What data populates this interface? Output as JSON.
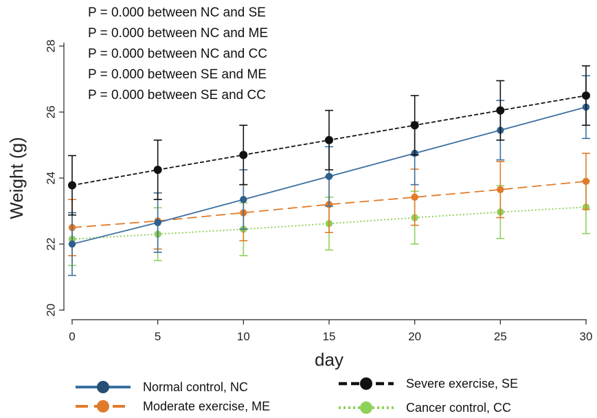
{
  "chart_data": {
    "type": "line",
    "xlabel": "day",
    "ylabel": "Weight (g)",
    "x": [
      0,
      5,
      10,
      15,
      20,
      25,
      30
    ],
    "xlim": [
      0,
      30
    ],
    "ylim": [
      20,
      28
    ],
    "x_ticks": [
      "0",
      "5",
      "10",
      "15",
      "20",
      "25",
      "30"
    ],
    "y_ticks": [
      "20",
      "22",
      "24",
      "26",
      "28"
    ],
    "grid": false,
    "legend_position": "bottom",
    "series": [
      {
        "name": "Normal control, NC",
        "values": [
          22.0,
          22.65,
          23.35,
          24.05,
          24.75,
          25.45,
          26.15
        ],
        "err": [
          0.95,
          0.9,
          0.9,
          0.9,
          0.95,
          0.9,
          0.95
        ],
        "color": "#3a6fa0",
        "dash": "solid"
      },
      {
        "name": "Moderate exercise, ME",
        "values": [
          22.5,
          22.7,
          22.95,
          23.2,
          23.42,
          23.65,
          23.9
        ],
        "err": [
          0.85,
          0.85,
          0.85,
          0.85,
          0.85,
          0.85,
          0.85
        ],
        "color": "#e07b2a",
        "dash": "dashed"
      },
      {
        "name": "Severe exercise, SE",
        "values": [
          23.78,
          24.25,
          24.7,
          25.15,
          25.6,
          26.05,
          26.5
        ],
        "err": [
          0.9,
          0.9,
          0.9,
          0.9,
          0.9,
          0.9,
          0.9
        ],
        "color": "#111111",
        "dash": "short-dashed"
      },
      {
        "name": "Cancer control, CC",
        "values": [
          22.15,
          22.3,
          22.45,
          22.62,
          22.8,
          22.97,
          23.12
        ],
        "err": [
          0.8,
          0.8,
          0.8,
          0.8,
          0.8,
          0.8,
          0.8
        ],
        "color": "#8fd05a",
        "dash": "dotted"
      }
    ],
    "annotations": [
      "P = 0.000 between NC and SE",
      "P = 0.000 between NC and ME",
      "P = 0.000 between NC and CC",
      "P = 0.000 between SE and ME",
      "P = 0.000 between SE and CC"
    ]
  }
}
